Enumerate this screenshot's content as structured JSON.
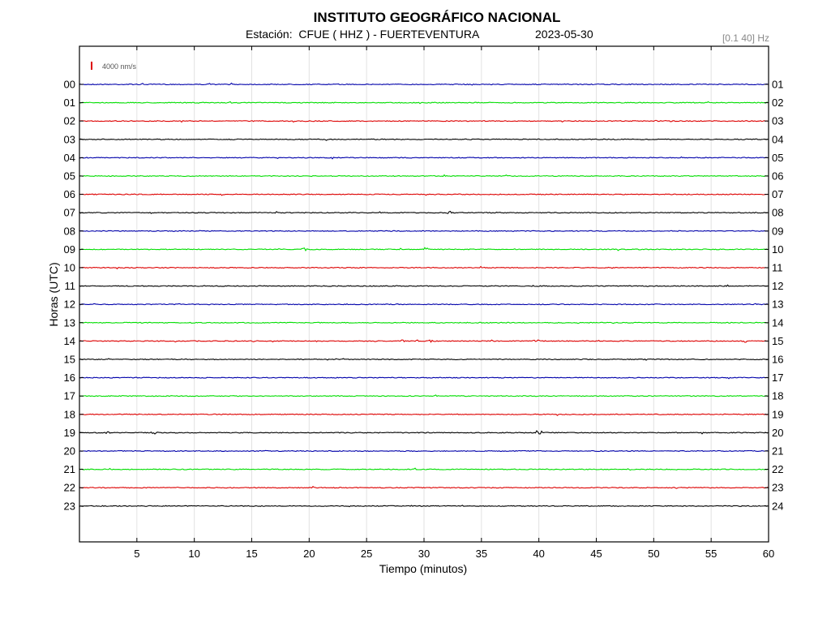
{
  "header": {
    "title": "INSTITUTO GEOGRÁFICO NACIONAL",
    "station": "Estación:  CFUE ( HHZ ) - FUERTEVENTURA",
    "date": "2023-05-30",
    "filter": "[0.1 40] Hz"
  },
  "chart_data": {
    "type": "line",
    "title": "INSTITUTO GEOGRÁFICO NACIONAL",
    "xlabel": "Tiempo (minutos)",
    "ylabel": "Horas (UTC)",
    "xlim": [
      0,
      60
    ],
    "x_ticks": [
      "5",
      "10",
      "15",
      "20",
      "25",
      "30",
      "35",
      "40",
      "45",
      "50",
      "55",
      "60"
    ],
    "grid": true,
    "scale_bar": "4000 nm/s",
    "trace_colors": [
      "#0000aa",
      "#00dd00",
      "#dd0000",
      "#000000"
    ],
    "rows": [
      {
        "left": "00",
        "right": "01"
      },
      {
        "left": "01",
        "right": "02"
      },
      {
        "left": "02",
        "right": "03"
      },
      {
        "left": "03",
        "right": "04"
      },
      {
        "left": "04",
        "right": "05"
      },
      {
        "left": "05",
        "right": "06"
      },
      {
        "left": "06",
        "right": "07"
      },
      {
        "left": "07",
        "right": "08"
      },
      {
        "left": "08",
        "right": "09"
      },
      {
        "left": "09",
        "right": "10"
      },
      {
        "left": "10",
        "right": "11"
      },
      {
        "left": "11",
        "right": "12"
      },
      {
        "left": "12",
        "right": "13"
      },
      {
        "left": "13",
        "right": "14"
      },
      {
        "left": "14",
        "right": "15"
      },
      {
        "left": "15",
        "right": "16"
      },
      {
        "left": "16",
        "right": "17"
      },
      {
        "left": "17",
        "right": "18"
      },
      {
        "left": "18",
        "right": "19"
      },
      {
        "left": "19",
        "right": "20"
      },
      {
        "left": "20",
        "right": "21"
      },
      {
        "left": "21",
        "right": "22"
      },
      {
        "left": "22",
        "right": "23"
      },
      {
        "left": "23",
        "right": "24"
      }
    ],
    "events": [
      {
        "hour": "07",
        "minute": 32.3
      },
      {
        "hour": "09",
        "minute": 19.6
      },
      {
        "hour": "09",
        "minute": 30.2
      },
      {
        "hour": "11",
        "minute": 39.6
      },
      {
        "hour": "14",
        "minute": 28.0
      },
      {
        "hour": "14",
        "minute": 29.5
      },
      {
        "hour": "14",
        "minute": 30.5
      },
      {
        "hour": "14",
        "minute": 39.8
      },
      {
        "hour": "14",
        "minute": 58.0
      },
      {
        "hour": "19",
        "minute": 2.5
      },
      {
        "hour": "19",
        "minute": 6.5
      },
      {
        "hour": "19",
        "minute": 40.0
      },
      {
        "hour": "21",
        "minute": 48.0
      }
    ]
  }
}
